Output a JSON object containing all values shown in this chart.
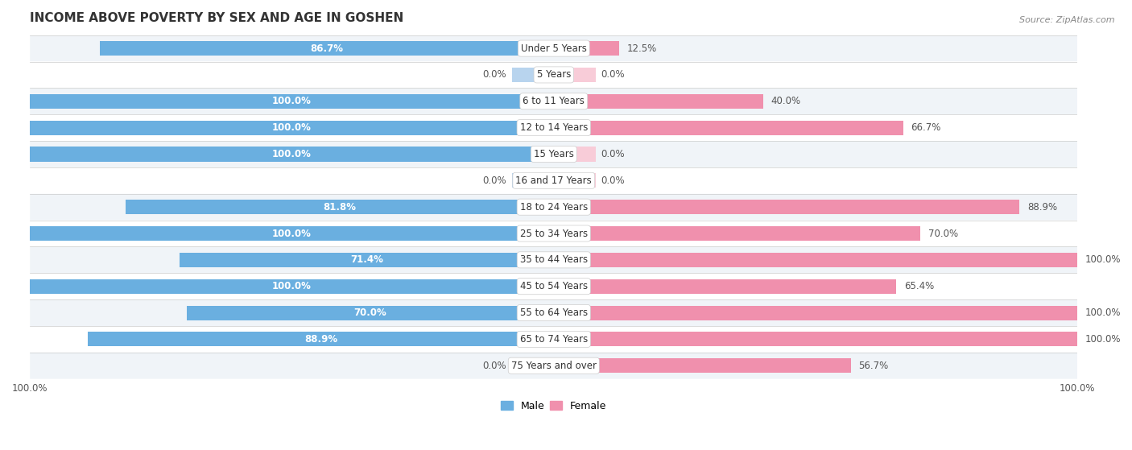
{
  "title": "INCOME ABOVE POVERTY BY SEX AND AGE IN GOSHEN",
  "source": "Source: ZipAtlas.com",
  "categories": [
    "Under 5 Years",
    "5 Years",
    "6 to 11 Years",
    "12 to 14 Years",
    "15 Years",
    "16 and 17 Years",
    "18 to 24 Years",
    "25 to 34 Years",
    "35 to 44 Years",
    "45 to 54 Years",
    "55 to 64 Years",
    "65 to 74 Years",
    "75 Years and over"
  ],
  "male": [
    86.7,
    0.0,
    100.0,
    100.0,
    100.0,
    0.0,
    81.8,
    100.0,
    71.4,
    100.0,
    70.0,
    88.9,
    0.0
  ],
  "female": [
    12.5,
    0.0,
    40.0,
    66.7,
    0.0,
    0.0,
    88.9,
    70.0,
    100.0,
    65.4,
    100.0,
    100.0,
    56.7
  ],
  "male_color": "#6aafe0",
  "female_color": "#f090ad",
  "male_light_color": "#b8d4ee",
  "female_light_color": "#f8ccd8",
  "row_colors": [
    "#f0f4f8",
    "#ffffff"
  ],
  "bar_height": 0.55,
  "center_label_bg": "#ffffff",
  "text_dark": "#555555",
  "text_white": "#ffffff"
}
